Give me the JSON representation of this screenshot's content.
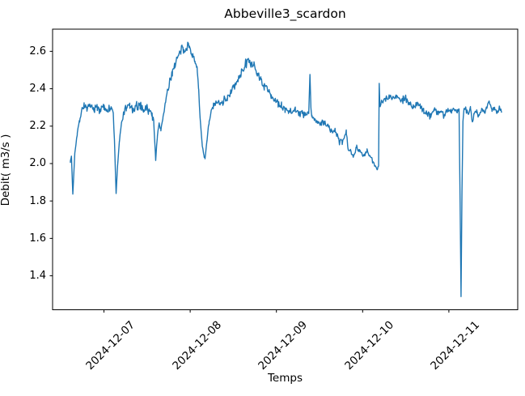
{
  "figure": {
    "title": "Abbeville3_scardon",
    "xlabel": "Temps",
    "ylabel": "Debit( m3/s )"
  },
  "chart_data": {
    "type": "line",
    "title": "Abbeville3_scardon",
    "xlabel": "Temps",
    "ylabel": "Debit( m3/s )",
    "grid": false,
    "legend_visible": false,
    "line_color": "#1f77b4",
    "axis_color": "#000000",
    "background_color": "#ffffff",
    "x_unit": "days relative to 2024-12-07 00:00",
    "xlim": [
      -0.5957,
      4.7983
    ],
    "ylim": [
      1.2185,
      2.7185
    ],
    "xticks": [
      {
        "t": 0,
        "label": "2024-12-07"
      },
      {
        "t": 1,
        "label": "2024-12-08"
      },
      {
        "t": 2,
        "label": "2024-12-09"
      },
      {
        "t": 3,
        "label": "2024-12-10"
      },
      {
        "t": 4,
        "label": "2024-12-11"
      }
    ],
    "yticks": [
      {
        "value": 1.4,
        "label": "1.4"
      },
      {
        "value": 1.6,
        "label": "1.6"
      },
      {
        "value": 1.8,
        "label": "1.8"
      },
      {
        "value": 2.0,
        "label": "2.0"
      },
      {
        "value": 2.2,
        "label": "2.2"
      },
      {
        "value": 2.4,
        "label": "2.4"
      },
      {
        "value": 2.6,
        "label": "2.6"
      }
    ],
    "noise_seed": 7,
    "sample_step_days": 0.008,
    "series": [
      {
        "name": "Debit",
        "keypoints": [
          [
            -0.389,
            2.01,
            0.004
          ],
          [
            -0.377,
            2.04,
            0.004
          ],
          [
            -0.361,
            1.835,
            0.003
          ],
          [
            -0.338,
            2.06,
            0.008
          ],
          [
            -0.31,
            2.16,
            0.01
          ],
          [
            -0.282,
            2.23,
            0.012
          ],
          [
            -0.258,
            2.29,
            0.015
          ],
          [
            -0.23,
            2.31,
            0.018
          ],
          [
            -0.2,
            2.295,
            0.02
          ],
          [
            -0.16,
            2.3,
            0.02
          ],
          [
            -0.12,
            2.29,
            0.02
          ],
          [
            -0.08,
            2.3,
            0.02
          ],
          [
            -0.04,
            2.29,
            0.02
          ],
          [
            0.0,
            2.3,
            0.02
          ],
          [
            0.04,
            2.29,
            0.02
          ],
          [
            0.08,
            2.295,
            0.02
          ],
          [
            0.108,
            2.27,
            0.012
          ],
          [
            0.122,
            2.12,
            0.006
          ],
          [
            0.141,
            1.84,
            0.003
          ],
          [
            0.158,
            1.99,
            0.006
          ],
          [
            0.18,
            2.12,
            0.008
          ],
          [
            0.205,
            2.22,
            0.012
          ],
          [
            0.23,
            2.27,
            0.015
          ],
          [
            0.26,
            2.3,
            0.018
          ],
          [
            0.3,
            2.31,
            0.02
          ],
          [
            0.34,
            2.28,
            0.02
          ],
          [
            0.38,
            2.3,
            0.022
          ],
          [
            0.42,
            2.31,
            0.022
          ],
          [
            0.46,
            2.29,
            0.02
          ],
          [
            0.5,
            2.3,
            0.02
          ],
          [
            0.53,
            2.28,
            0.018
          ],
          [
            0.558,
            2.26,
            0.014
          ],
          [
            0.577,
            2.23,
            0.008
          ],
          [
            0.6,
            2.02,
            0.004
          ],
          [
            0.62,
            2.15,
            0.008
          ],
          [
            0.64,
            2.21,
            0.01
          ],
          [
            0.66,
            2.18,
            0.01
          ],
          [
            0.685,
            2.25,
            0.012
          ],
          [
            0.71,
            2.32,
            0.015
          ],
          [
            0.736,
            2.38,
            0.018
          ],
          [
            0.765,
            2.44,
            0.02
          ],
          [
            0.793,
            2.49,
            0.022
          ],
          [
            0.821,
            2.53,
            0.024
          ],
          [
            0.849,
            2.56,
            0.024
          ],
          [
            0.877,
            2.585,
            0.022
          ],
          [
            0.905,
            2.615,
            0.022
          ],
          [
            0.928,
            2.6,
            0.022
          ],
          [
            0.952,
            2.625,
            0.02
          ],
          [
            0.971,
            2.645,
            0.016
          ],
          [
            0.99,
            2.62,
            0.016
          ],
          [
            1.01,
            2.6,
            0.016
          ],
          [
            1.03,
            2.575,
            0.015
          ],
          [
            1.055,
            2.55,
            0.015
          ],
          [
            1.08,
            2.52,
            0.012
          ],
          [
            1.097,
            2.4,
            0.008
          ],
          [
            1.115,
            2.24,
            0.006
          ],
          [
            1.14,
            2.1,
            0.006
          ],
          [
            1.16,
            2.04,
            0.005
          ],
          [
            1.172,
            2.03,
            0.005
          ],
          [
            1.195,
            2.12,
            0.008
          ],
          [
            1.22,
            2.22,
            0.01
          ],
          [
            1.245,
            2.28,
            0.014
          ],
          [
            1.27,
            2.31,
            0.016
          ],
          [
            1.31,
            2.32,
            0.018
          ],
          [
            1.35,
            2.33,
            0.018
          ],
          [
            1.39,
            2.34,
            0.018
          ],
          [
            1.43,
            2.35,
            0.018
          ],
          [
            1.47,
            2.38,
            0.018
          ],
          [
            1.51,
            2.41,
            0.018
          ],
          [
            1.55,
            2.44,
            0.018
          ],
          [
            1.59,
            2.48,
            0.018
          ],
          [
            1.63,
            2.52,
            0.018
          ],
          [
            1.66,
            2.545,
            0.016
          ],
          [
            1.68,
            2.555,
            0.014
          ],
          [
            1.705,
            2.53,
            0.016
          ],
          [
            1.74,
            2.52,
            0.018
          ],
          [
            1.78,
            2.48,
            0.018
          ],
          [
            1.82,
            2.45,
            0.018
          ],
          [
            1.86,
            2.41,
            0.018
          ],
          [
            1.9,
            2.4,
            0.018
          ],
          [
            1.94,
            2.36,
            0.016
          ],
          [
            1.98,
            2.34,
            0.016
          ],
          [
            2.02,
            2.32,
            0.018
          ],
          [
            2.06,
            2.3,
            0.018
          ],
          [
            2.1,
            2.3,
            0.016
          ],
          [
            2.14,
            2.28,
            0.016
          ],
          [
            2.18,
            2.28,
            0.016
          ],
          [
            2.22,
            2.29,
            0.016
          ],
          [
            2.26,
            2.27,
            0.016
          ],
          [
            2.3,
            2.27,
            0.016
          ],
          [
            2.34,
            2.26,
            0.014
          ],
          [
            2.375,
            2.27,
            0.01
          ],
          [
            2.389,
            2.475,
            0.003
          ],
          [
            2.4,
            2.3,
            0.006
          ],
          [
            2.41,
            2.25,
            0.01
          ],
          [
            2.44,
            2.24,
            0.014
          ],
          [
            2.48,
            2.22,
            0.014
          ],
          [
            2.52,
            2.21,
            0.014
          ],
          [
            2.56,
            2.22,
            0.014
          ],
          [
            2.6,
            2.2,
            0.014
          ],
          [
            2.64,
            2.17,
            0.014
          ],
          [
            2.68,
            2.18,
            0.014
          ],
          [
            2.72,
            2.13,
            0.014
          ],
          [
            2.76,
            2.11,
            0.014
          ],
          [
            2.79,
            2.14,
            0.012
          ],
          [
            2.81,
            2.17,
            0.01
          ],
          [
            2.83,
            2.08,
            0.012
          ],
          [
            2.87,
            2.06,
            0.012
          ],
          [
            2.9,
            2.05,
            0.012
          ],
          [
            2.93,
            2.09,
            0.012
          ],
          [
            2.96,
            2.07,
            0.012
          ],
          [
            2.99,
            2.05,
            0.012
          ],
          [
            3.02,
            2.04,
            0.012
          ],
          [
            3.05,
            2.07,
            0.012
          ],
          [
            3.08,
            2.04,
            0.012
          ],
          [
            3.11,
            2.02,
            0.01
          ],
          [
            3.14,
            1.99,
            0.008
          ],
          [
            3.168,
            1.97,
            0.006
          ],
          [
            3.185,
            1.99,
            0.005
          ],
          [
            3.192,
            2.43,
            0.003
          ],
          [
            3.2,
            2.31,
            0.008
          ],
          [
            3.23,
            2.33,
            0.014
          ],
          [
            3.27,
            2.35,
            0.016
          ],
          [
            3.31,
            2.36,
            0.016
          ],
          [
            3.35,
            2.35,
            0.016
          ],
          [
            3.39,
            2.36,
            0.016
          ],
          [
            3.43,
            2.34,
            0.016
          ],
          [
            3.47,
            2.35,
            0.016
          ],
          [
            3.51,
            2.34,
            0.016
          ],
          [
            3.55,
            2.32,
            0.016
          ],
          [
            3.59,
            2.3,
            0.016
          ],
          [
            3.63,
            2.32,
            0.016
          ],
          [
            3.67,
            2.3,
            0.014
          ],
          [
            3.71,
            2.28,
            0.014
          ],
          [
            3.75,
            2.27,
            0.014
          ],
          [
            3.79,
            2.26,
            0.014
          ],
          [
            3.83,
            2.29,
            0.014
          ],
          [
            3.87,
            2.27,
            0.014
          ],
          [
            3.91,
            2.28,
            0.014
          ],
          [
            3.95,
            2.26,
            0.014
          ],
          [
            3.99,
            2.29,
            0.014
          ],
          [
            4.03,
            2.28,
            0.014
          ],
          [
            4.07,
            2.29,
            0.012
          ],
          [
            4.1,
            2.28,
            0.01
          ],
          [
            4.118,
            2.29,
            0.006
          ],
          [
            4.13,
            1.8,
            0.003
          ],
          [
            4.141,
            1.29,
            0.002
          ],
          [
            4.152,
            1.85,
            0.003
          ],
          [
            4.163,
            2.22,
            0.005
          ],
          [
            4.175,
            2.3,
            0.008
          ],
          [
            4.2,
            2.29,
            0.012
          ],
          [
            4.225,
            2.26,
            0.012
          ],
          [
            4.25,
            2.3,
            0.012
          ],
          [
            4.272,
            2.22,
            0.01
          ],
          [
            4.29,
            2.26,
            0.012
          ],
          [
            4.32,
            2.28,
            0.012
          ],
          [
            4.35,
            2.26,
            0.012
          ],
          [
            4.38,
            2.29,
            0.012
          ],
          [
            4.41,
            2.27,
            0.012
          ],
          [
            4.44,
            2.3,
            0.012
          ],
          [
            4.47,
            2.33,
            0.01
          ],
          [
            4.5,
            2.28,
            0.012
          ],
          [
            4.53,
            2.3,
            0.012
          ],
          [
            4.56,
            2.27,
            0.012
          ],
          [
            4.585,
            2.3,
            0.01
          ],
          [
            4.61,
            2.28,
            0.006
          ]
        ]
      }
    ]
  }
}
